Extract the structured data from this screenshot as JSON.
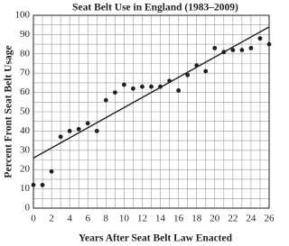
{
  "chart_data": {
    "type": "scatter",
    "title": "Seat Belt Use in England (1983–2009)",
    "x_label": "Years After Seat Belt Law Enacted",
    "y_label": "Percent Front Seat Belt Usage",
    "x": [
      0,
      1,
      2,
      3,
      4,
      5,
      6,
      7,
      8,
      9,
      10,
      11,
      12,
      13,
      14,
      15,
      16,
      17,
      18,
      19,
      20,
      21,
      22,
      23,
      24,
      25,
      26
    ],
    "values": [
      12,
      12,
      19,
      37,
      40,
      41,
      44,
      40,
      56,
      60,
      64,
      62,
      63,
      63,
      63,
      66,
      61,
      69,
      74,
      71,
      83,
      81,
      82,
      82,
      83,
      88,
      85
    ],
    "color": "#231f20",
    "trend_line": {
      "x": [
        0,
        26
      ],
      "y": [
        26,
        94
      ]
    },
    "xlim": [
      0,
      26
    ],
    "ylim": [
      0,
      100
    ],
    "xticks": [
      0,
      2,
      4,
      6,
      8,
      10,
      12,
      14,
      16,
      18,
      20,
      22,
      24,
      26
    ],
    "yticks": [
      0,
      10,
      20,
      30,
      40,
      50,
      60,
      70,
      80,
      90,
      100
    ],
    "xminorticks": [
      1,
      3,
      5,
      7,
      9,
      11,
      13,
      15,
      17,
      19,
      21,
      23,
      25
    ],
    "yminorticks": [
      5,
      15,
      25,
      35,
      45,
      55,
      65,
      75,
      85,
      95
    ],
    "grid": true
  }
}
